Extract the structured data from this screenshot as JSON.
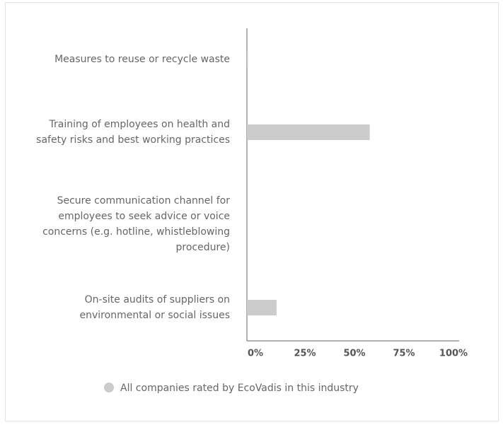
{
  "chart_data": {
    "type": "barh",
    "categories": [
      "Measures to reuse or recycle waste",
      "Training of employees on health and safety risks and best working practices",
      "Secure communication channel for employees to seek advice or voice concerns (e.g. hotline, whistleblowing procedure)",
      "On-site audits of suppliers on environmental or social issues"
    ],
    "series": [
      {
        "name": "All companies rated by EcoVadis in this industry",
        "color": "#cccccc",
        "values": [
          0.5,
          62,
          0,
          15
        ]
      }
    ],
    "xlim": [
      0,
      100
    ],
    "xticks": [
      {
        "value": 0,
        "label": "0%"
      },
      {
        "value": 25,
        "label": "25%"
      },
      {
        "value": 50,
        "label": "50%"
      },
      {
        "value": 75,
        "label": "75%"
      },
      {
        "value": 100,
        "label": "100%"
      }
    ],
    "grid": false
  }
}
